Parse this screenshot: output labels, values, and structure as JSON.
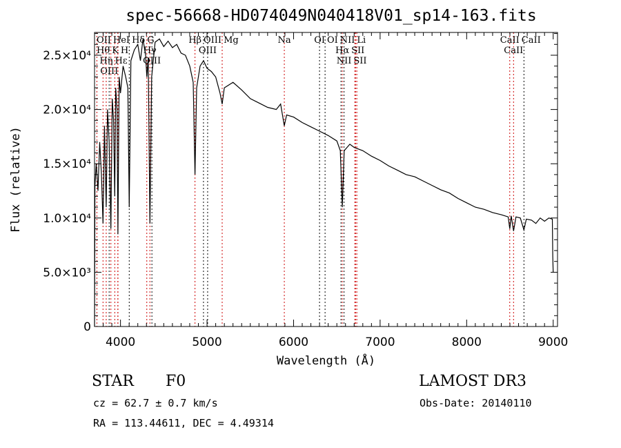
{
  "chart_data": {
    "type": "line",
    "title": "spec-56668-HD074049N040418V01_sp14-163.fits",
    "xlabel": "Wavelength (Å)",
    "ylabel": "Flux (relative)",
    "xlim": [
      3700,
      9050
    ],
    "ylim": [
      0,
      27100
    ],
    "xticks": [
      4000,
      5000,
      6000,
      7000,
      8000,
      9000
    ],
    "xtick_labels": [
      "4000",
      "5000",
      "6000",
      "7000",
      "8000",
      "9000"
    ],
    "yticks": [
      0,
      5000,
      10000,
      15000,
      20000,
      25000
    ],
    "ytick_labels": [
      "0",
      "5.0×10³",
      "1.0×10⁴",
      "1.5×10⁴",
      "2.0×10⁴",
      "2.5×10⁴"
    ],
    "grid": false,
    "series": [
      {
        "name": "spectrum",
        "color": "#000000",
        "points": [
          [
            3700,
            0
          ],
          [
            3705,
            13000
          ],
          [
            3720,
            15000
          ],
          [
            3740,
            12500
          ],
          [
            3760,
            17000
          ],
          [
            3780,
            14000
          ],
          [
            3798,
            9500
          ],
          [
            3815,
            18500
          ],
          [
            3835,
            11000
          ],
          [
            3850,
            20000
          ],
          [
            3869,
            17000
          ],
          [
            3889,
            9000
          ],
          [
            3905,
            21000
          ],
          [
            3920,
            19000
          ],
          [
            3934,
            12000
          ],
          [
            3945,
            22000
          ],
          [
            3960,
            20000
          ],
          [
            3970,
            8500
          ],
          [
            3985,
            23000
          ],
          [
            4000,
            21500
          ],
          [
            4030,
            24000
          ],
          [
            4060,
            23000
          ],
          [
            4085,
            22000
          ],
          [
            4101,
            11000
          ],
          [
            4120,
            24500
          ],
          [
            4160,
            25500
          ],
          [
            4200,
            26000
          ],
          [
            4230,
            24500
          ],
          [
            4260,
            26500
          ],
          [
            4290,
            25000
          ],
          [
            4304,
            23000
          ],
          [
            4320,
            24800
          ],
          [
            4340,
            9500
          ],
          [
            4360,
            23000
          ],
          [
            4400,
            26200
          ],
          [
            4450,
            26500
          ],
          [
            4500,
            25800
          ],
          [
            4550,
            26300
          ],
          [
            4600,
            25700
          ],
          [
            4650,
            26000
          ],
          [
            4700,
            25200
          ],
          [
            4750,
            25000
          ],
          [
            4800,
            24000
          ],
          [
            4840,
            22500
          ],
          [
            4861,
            14000
          ],
          [
            4880,
            22000
          ],
          [
            4920,
            24000
          ],
          [
            4960,
            24500
          ],
          [
            5000,
            23800
          ],
          [
            5050,
            23500
          ],
          [
            5100,
            23000
          ],
          [
            5150,
            21500
          ],
          [
            5175,
            20500
          ],
          [
            5200,
            22000
          ],
          [
            5300,
            22500
          ],
          [
            5400,
            21800
          ],
          [
            5500,
            21000
          ],
          [
            5600,
            20600
          ],
          [
            5700,
            20200
          ],
          [
            5800,
            20000
          ],
          [
            5850,
            20500
          ],
          [
            5893,
            18500
          ],
          [
            5920,
            19500
          ],
          [
            6000,
            19300
          ],
          [
            6100,
            18800
          ],
          [
            6200,
            18400
          ],
          [
            6300,
            18000
          ],
          [
            6400,
            17600
          ],
          [
            6500,
            17100
          ],
          [
            6540,
            16200
          ],
          [
            6563,
            11000
          ],
          [
            6585,
            16200
          ],
          [
            6650,
            16800
          ],
          [
            6700,
            16500
          ],
          [
            6800,
            16200
          ],
          [
            6900,
            15700
          ],
          [
            7000,
            15300
          ],
          [
            7100,
            14800
          ],
          [
            7200,
            14400
          ],
          [
            7300,
            14000
          ],
          [
            7400,
            13800
          ],
          [
            7500,
            13400
          ],
          [
            7600,
            13000
          ],
          [
            7700,
            12600
          ],
          [
            7800,
            12300
          ],
          [
            7900,
            11800
          ],
          [
            8000,
            11400
          ],
          [
            8100,
            11000
          ],
          [
            8200,
            10800
          ],
          [
            8300,
            10500
          ],
          [
            8400,
            10300
          ],
          [
            8480,
            10100
          ],
          [
            8498,
            9000
          ],
          [
            8515,
            10200
          ],
          [
            8542,
            8800
          ],
          [
            8570,
            10100
          ],
          [
            8620,
            10000
          ],
          [
            8662,
            8900
          ],
          [
            8690,
            9900
          ],
          [
            8750,
            9800
          ],
          [
            8800,
            9500
          ],
          [
            8850,
            10000
          ],
          [
            8900,
            9700
          ],
          [
            8950,
            10000
          ],
          [
            8990,
            9900
          ],
          [
            8995,
            6500
          ],
          [
            9000,
            5000
          ]
        ]
      }
    ],
    "line_markers": [
      {
        "wl": 3727,
        "label": "OII",
        "row": 2,
        "color": "#cc0000"
      },
      {
        "wl": 3798,
        "label": "Hθ",
        "row": 0,
        "color": "#cc0000"
      },
      {
        "wl": 3835,
        "label": "Hη",
        "row": 2,
        "color": "#cc0000"
      },
      {
        "wl": 3869,
        "label": "OIII",
        "row": 1,
        "color": "#000000"
      },
      {
        "wl": 3889,
        "label": "HeI",
        "row": 1,
        "color": "#cc0000"
      },
      {
        "wl": 3934,
        "label": "K",
        "row": 0,
        "color": "#cc0000"
      },
      {
        "wl": 3970,
        "label": "H",
        "row": 2,
        "color": "#cc0000"
      },
      {
        "wl": 3970,
        "label": "Hε",
        "row": 1,
        "color": "#cc0000"
      },
      {
        "wl": 4101,
        "label": "Hδ",
        "row": 0,
        "color": "#000000"
      },
      {
        "wl": 4304,
        "label": "G",
        "row": 1,
        "color": "#cc0000"
      },
      {
        "wl": 4340,
        "label": "Hγ",
        "row": 2,
        "color": "#cc0000"
      },
      {
        "wl": 4363,
        "label": "OIII",
        "row": 0,
        "color": "#000000"
      },
      {
        "wl": 4861,
        "label": "Hβ",
        "row": 2,
        "color": "#cc0000"
      },
      {
        "wl": 4959,
        "label": "OIII",
        "row": 0,
        "color": "#000000"
      },
      {
        "wl": 5007,
        "label": "OIII",
        "row": 1,
        "color": "#000000"
      },
      {
        "wl": 5175,
        "label": "Mg",
        "row": 2,
        "color": "#cc0000"
      },
      {
        "wl": 5893,
        "label": "Na",
        "row": 1,
        "color": "#cc0000"
      },
      {
        "wl": 6300,
        "label": "OI",
        "row": 0,
        "color": "#000000"
      },
      {
        "wl": 6364,
        "label": "OI",
        "row": 2,
        "color": "#000000"
      },
      {
        "wl": 6548,
        "label": "NII",
        "row": 1,
        "color": "#000000"
      },
      {
        "wl": 6563,
        "label": "Hα",
        "row": 0,
        "color": "#cc0000"
      },
      {
        "wl": 6583,
        "label": "NII",
        "row": 2,
        "color": "#000000"
      },
      {
        "wl": 6708,
        "label": "Li",
        "row": 1,
        "color": "#cc0000"
      },
      {
        "wl": 6716,
        "label": "SII",
        "row": 0,
        "color": "#cc0000"
      },
      {
        "wl": 6731,
        "label": "SII",
        "row": 2,
        "color": "#cc0000"
      },
      {
        "wl": 8498,
        "label": "CaII",
        "row": 0,
        "color": "#cc0000"
      },
      {
        "wl": 8542,
        "label": "CaII",
        "row": 1,
        "color": "#cc0000"
      },
      {
        "wl": 8662,
        "label": "CaII",
        "row": 2,
        "color": "#000000"
      }
    ]
  },
  "footer": {
    "class_label": "STAR",
    "subclass": "F0",
    "cz": "cz = 62.7 ± 0.7 km/s",
    "coords": "RA = 113.44611, DEC =   4.49314",
    "survey": "LAMOST DR3",
    "obs_date": "Obs-Date: 20140110"
  }
}
